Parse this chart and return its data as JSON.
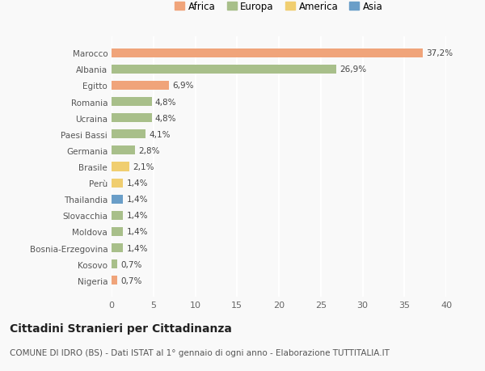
{
  "categories": [
    "Nigeria",
    "Kosovo",
    "Bosnia-Erzegovina",
    "Moldova",
    "Slovacchia",
    "Thailandia",
    "Perù",
    "Brasile",
    "Germania",
    "Paesi Bassi",
    "Ucraina",
    "Romania",
    "Egitto",
    "Albania",
    "Marocco"
  ],
  "values": [
    0.7,
    0.7,
    1.4,
    1.4,
    1.4,
    1.4,
    1.4,
    2.1,
    2.8,
    4.1,
    4.8,
    4.8,
    6.9,
    26.9,
    37.2
  ],
  "continents": [
    "Africa",
    "Europa",
    "Europa",
    "Europa",
    "Europa",
    "Asia",
    "America",
    "America",
    "Europa",
    "Europa",
    "Europa",
    "Europa",
    "Africa",
    "Europa",
    "Africa"
  ],
  "labels": [
    "0,7%",
    "0,7%",
    "1,4%",
    "1,4%",
    "1,4%",
    "1,4%",
    "1,4%",
    "2,1%",
    "2,8%",
    "4,1%",
    "4,8%",
    "4,8%",
    "6,9%",
    "26,9%",
    "37,2%"
  ],
  "colors": {
    "Africa": "#F0A47A",
    "Europa": "#A8BF8A",
    "America": "#F0CE70",
    "Asia": "#6A9EC8"
  },
  "legend_items": [
    "Africa",
    "Europa",
    "America",
    "Asia"
  ],
  "xlim": [
    0,
    40
  ],
  "xticks": [
    0,
    5,
    10,
    15,
    20,
    25,
    30,
    35,
    40
  ],
  "title": "Cittadini Stranieri per Cittadinanza",
  "subtitle": "COMUNE DI IDRO (BS) - Dati ISTAT al 1° gennaio di ogni anno - Elaborazione TUTTITALIA.IT",
  "bg_color": "#f9f9f9",
  "bar_height": 0.55,
  "label_fontsize": 7.5,
  "ytick_fontsize": 7.5,
  "xtick_fontsize": 8,
  "title_fontsize": 10,
  "subtitle_fontsize": 7.5
}
